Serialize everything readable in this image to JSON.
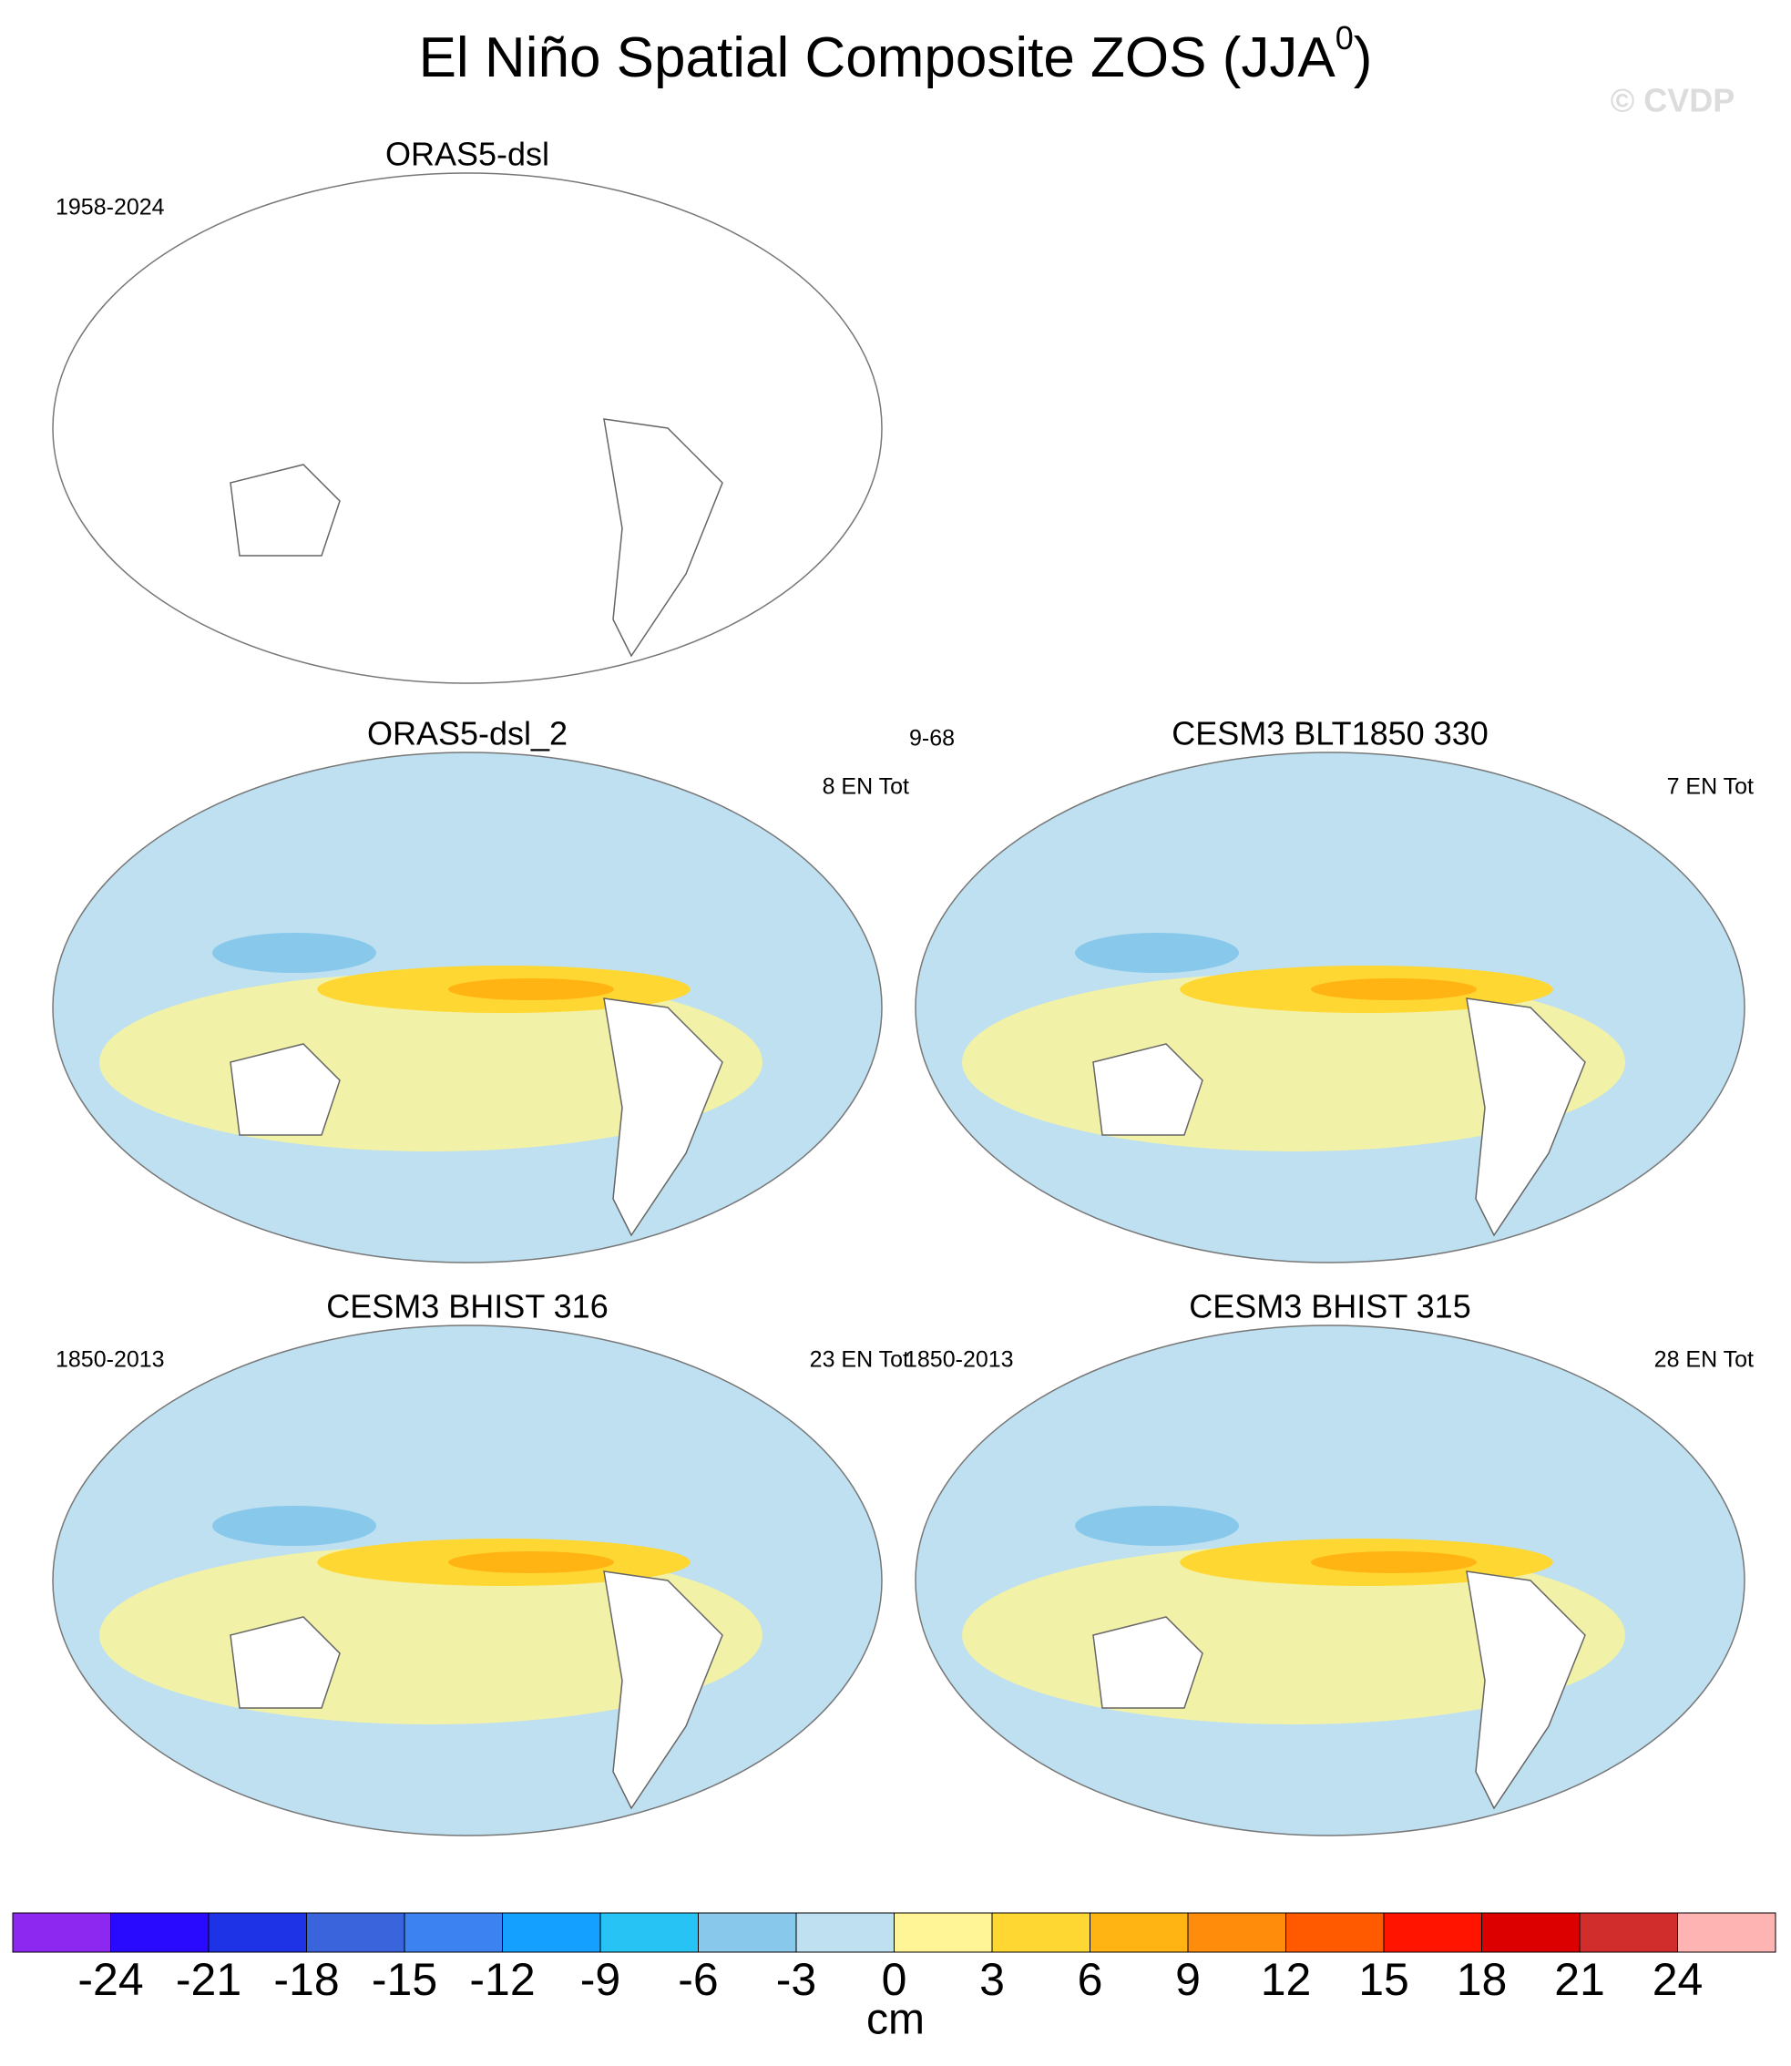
{
  "chart_data": {
    "type": "map",
    "title": "El Niño Spatial Composite ZOS (JJA",
    "title_superscript": "0",
    "title_end": ")",
    "watermark": "© CVDP",
    "panels": [
      {
        "title": "ORAS5-dsl",
        "left_label": "1958-2024",
        "filled": false
      },
      {
        "title": "ORAS5-dsl_2",
        "right_label": "8 EN Tot",
        "filled": true
      },
      {
        "title": "CESM3 BLT1850 330",
        "left_label": "9-68",
        "right_label": "7 EN Tot",
        "filled": true
      },
      {
        "title": "CESM3 BHIST 316",
        "left_label": "1850-2013",
        "right_label": "23 EN Tot",
        "filled": true
      },
      {
        "title": "CESM3 BHIST 315",
        "left_label": "1850-2013",
        "right_label": "28 EN Tot",
        "filled": true
      }
    ],
    "colorbar": {
      "label": "cm",
      "ticks": [
        -24,
        -21,
        -18,
        -15,
        -12,
        -9,
        -6,
        -3,
        0,
        3,
        6,
        9,
        12,
        15,
        18,
        21,
        24
      ],
      "colors": [
        "#8c28f0",
        "#2a0aff",
        "#1e32e6",
        "#3a64dc",
        "#3c82f0",
        "#14a0ff",
        "#28c3f5",
        "#87c8eb",
        "#bee0f0",
        "#fff596",
        "#ffd732",
        "#ffb414",
        "#ff8c0a",
        "#ff5a00",
        "#ff1400",
        "#dc0000",
        "#d22d2d",
        "#ffb4b4"
      ]
    }
  }
}
